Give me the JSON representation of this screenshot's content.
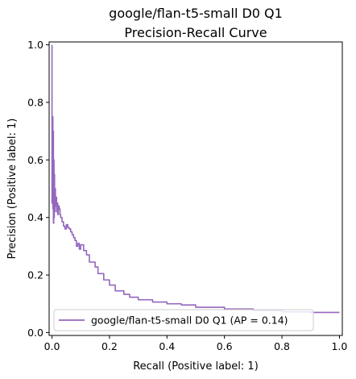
{
  "chart_data": {
    "type": "line",
    "title_lines": [
      "google/flan-t5-small D0 Q1",
      "Precision-Recall Curve"
    ],
    "xlabel": "Recall (Positive label: 1)",
    "ylabel": "Precision (Positive label: 1)",
    "xlim": [
      -0.01,
      1.01
    ],
    "ylim": [
      -0.01,
      1.01
    ],
    "xticks": [
      0.0,
      0.2,
      0.4,
      0.6,
      0.8,
      1.0
    ],
    "xtick_labels": [
      "0.0",
      "0.2",
      "0.4",
      "0.6",
      "0.8",
      "1.0"
    ],
    "yticks": [
      0.0,
      0.2,
      0.4,
      0.6,
      0.8,
      1.0
    ],
    "ytick_labels": [
      "0.0",
      "0.2",
      "0.4",
      "0.6",
      "0.8",
      "1.0"
    ],
    "grid": false,
    "legend_position": "lower-left",
    "series": [
      {
        "name": "google/flan-t5-small D0 Q1 (AP = 0.14)",
        "color": "#9467bd",
        "x": [
          1.0,
          0.98,
          0.9,
          0.8,
          0.7,
          0.6,
          0.5,
          0.45,
          0.4,
          0.35,
          0.3,
          0.27,
          0.25,
          0.22,
          0.2,
          0.18,
          0.16,
          0.15,
          0.13,
          0.12,
          0.11,
          0.1,
          0.095,
          0.09,
          0.085,
          0.08,
          0.075,
          0.07,
          0.065,
          0.06,
          0.055,
          0.05,
          0.045,
          0.04,
          0.035,
          0.03,
          0.028,
          0.025,
          0.022,
          0.02,
          0.018,
          0.016,
          0.014,
          0.012,
          0.01,
          0.009,
          0.008,
          0.007,
          0.006,
          0.005,
          0.004,
          0.003,
          0.002,
          0.0
        ],
        "y": [
          0.07,
          0.07,
          0.072,
          0.077,
          0.082,
          0.088,
          0.096,
          0.1,
          0.106,
          0.114,
          0.123,
          0.133,
          0.145,
          0.165,
          0.183,
          0.205,
          0.228,
          0.245,
          0.27,
          0.285,
          0.305,
          0.29,
          0.31,
          0.3,
          0.32,
          0.33,
          0.34,
          0.35,
          0.36,
          0.365,
          0.375,
          0.36,
          0.37,
          0.385,
          0.4,
          0.41,
          0.43,
          0.44,
          0.41,
          0.45,
          0.42,
          0.47,
          0.44,
          0.5,
          0.42,
          0.55,
          0.4,
          0.6,
          0.38,
          0.7,
          0.43,
          0.75,
          0.45,
          1.0
        ]
      }
    ]
  }
}
